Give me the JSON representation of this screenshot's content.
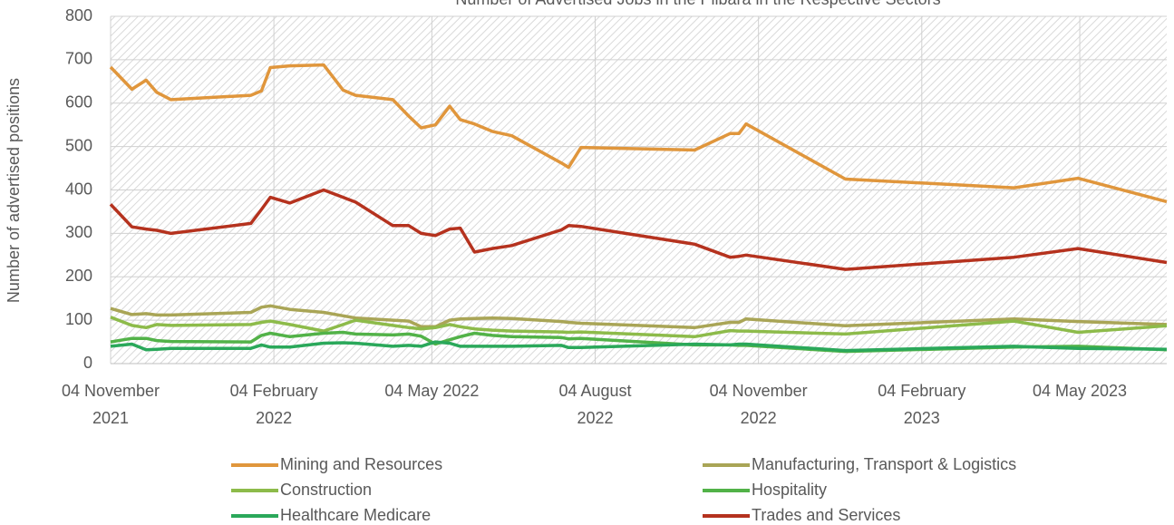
{
  "chart_data": {
    "type": "line",
    "title": "Number of Advertised Jobs in the Pilbara in the Respective Sectors",
    "y_label": "Number of advertised positions",
    "x": [
      "2021-11-04",
      "2021-11-16",
      "2021-11-24",
      "2021-11-30",
      "2021-12-08",
      "2022-01-22",
      "2022-01-28",
      "2022-02-02",
      "2022-02-13",
      "2022-03-04",
      "2022-03-15",
      "2022-03-22",
      "2022-04-12",
      "2022-04-21",
      "2022-04-28",
      "2022-05-06",
      "2022-05-14",
      "2022-05-20",
      "2022-05-28",
      "2022-06-07",
      "2022-06-18",
      "2022-07-16",
      "2022-07-20",
      "2022-07-27",
      "2022-09-29",
      "2022-10-19",
      "2022-10-24",
      "2022-10-28",
      "2022-12-23",
      "2023-03-28",
      "2023-05-03",
      "2023-06-22"
    ],
    "series": [
      {
        "name": "Mining and Resources",
        "color": "#e0963c",
        "values": [
          683,
          632,
          653,
          625,
          608,
          618,
          628,
          682,
          686,
          688,
          630,
          618,
          608,
          570,
          543,
          550,
          593,
          562,
          552,
          535,
          525,
          462,
          452,
          498,
          492,
          530,
          530,
          552,
          425,
          405,
          427,
          373
        ]
      },
      {
        "name": "Manufacturing, Transport & Logistics",
        "color": "#a9a556",
        "values": [
          127,
          113,
          115,
          112,
          112,
          118,
          130,
          133,
          125,
          118,
          110,
          105,
          100,
          98,
          85,
          85,
          100,
          103,
          104,
          105,
          104,
          97,
          95,
          93,
          83,
          95,
          95,
          103,
          87,
          103,
          97,
          90
        ]
      },
      {
        "name": "Construction",
        "color": "#8dbb4a",
        "values": [
          107,
          88,
          83,
          90,
          88,
          90,
          95,
          98,
          90,
          75,
          90,
          100,
          88,
          83,
          80,
          83,
          90,
          85,
          80,
          77,
          75,
          73,
          72,
          73,
          62,
          76,
          75,
          75,
          68,
          98,
          72,
          87
        ]
      },
      {
        "name": "Hospitality",
        "color": "#52b248",
        "values": [
          50,
          58,
          58,
          53,
          51,
          50,
          65,
          70,
          62,
          70,
          72,
          68,
          66,
          68,
          63,
          45,
          55,
          62,
          70,
          65,
          62,
          60,
          57,
          58,
          43,
          43,
          42,
          42,
          28,
          38,
          40,
          32
        ]
      },
      {
        "name": "Healthcare Medicare",
        "color": "#2aa85a",
        "values": [
          40,
          45,
          32,
          33,
          35,
          35,
          43,
          38,
          38,
          47,
          48,
          47,
          40,
          42,
          40,
          50,
          47,
          40,
          40,
          40,
          40,
          42,
          37,
          37,
          45,
          43,
          45,
          45,
          30,
          40,
          35,
          33
        ]
      },
      {
        "name": "Trades and Services",
        "color": "#b5321e",
        "values": [
          367,
          315,
          310,
          307,
          300,
          323,
          355,
          383,
          370,
          400,
          383,
          372,
          318,
          318,
          300,
          295,
          310,
          312,
          257,
          265,
          272,
          308,
          318,
          316,
          275,
          245,
          247,
          250,
          217,
          245,
          265,
          233
        ]
      }
    ],
    "xlim": [
      "2021-11-04",
      "2023-06-22"
    ],
    "xticks": [
      {
        "value": "2021-11-04",
        "label": "04 November 2021"
      },
      {
        "value": "2022-02-04",
        "label": "04 February 2022"
      },
      {
        "value": "2022-05-04",
        "label": "04 May 2022"
      },
      {
        "value": "2022-08-04",
        "label": "04 August 2022"
      },
      {
        "value": "2022-11-04",
        "label": "04 November 2022"
      },
      {
        "value": "2023-02-04",
        "label": "04 February 2023"
      },
      {
        "value": "2023-05-04",
        "label": "04 May 2023"
      }
    ],
    "ylim": [
      0,
      800
    ],
    "yticks": [
      0,
      100,
      200,
      300,
      400,
      500,
      600,
      700,
      800
    ],
    "grid": true,
    "legend": "bottom"
  }
}
